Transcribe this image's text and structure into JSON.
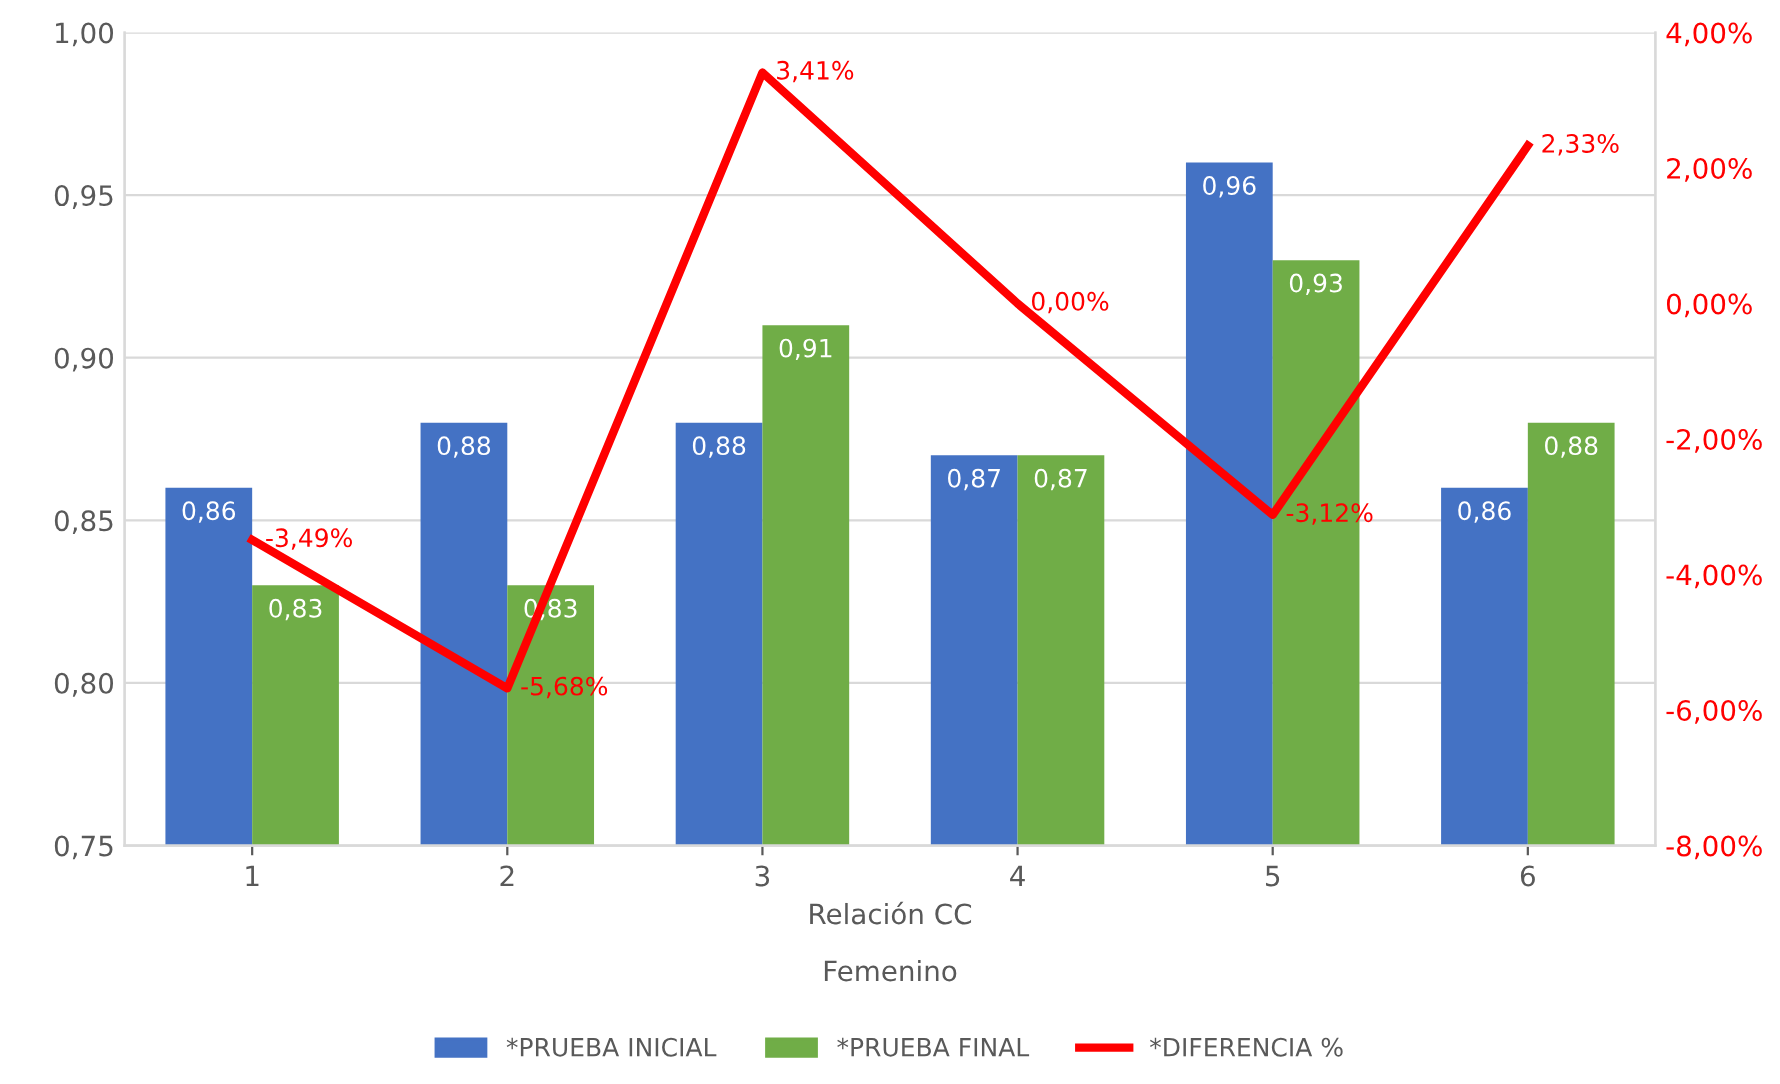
{
  "chart_data": {
    "type": "bar",
    "categories": [
      "1",
      "2",
      "3",
      "4",
      "5",
      "6"
    ],
    "xlabel": "Relación CC",
    "annotations": [
      "Femenino"
    ],
    "series": [
      {
        "name": "*PRUEBA INICIAL",
        "color": "#4472c4",
        "values": [
          0.86,
          0.88,
          0.88,
          0.87,
          0.96,
          0.86
        ],
        "value_labels": [
          "0,86",
          "0,88",
          "0,88",
          "0,87",
          "0,96",
          "0,86"
        ]
      },
      {
        "name": "*PRUEBA FINAL",
        "color": "#70ad47",
        "values": [
          0.83,
          0.83,
          0.91,
          0.87,
          0.93,
          0.88
        ],
        "value_labels": [
          "0,83",
          "0,83",
          "0,91",
          "0,87",
          "0,93",
          "0,88"
        ]
      },
      {
        "name": "*DIFERENCIA %",
        "type": "line",
        "axis": "y2",
        "color": "#ff0000",
        "values": [
          -3.49,
          -5.68,
          3.41,
          0.0,
          -3.12,
          2.33
        ],
        "value_labels": [
          "-3,49%",
          "-5,68%",
          "3,41%",
          "0,00%",
          "-3,12%",
          "2,33%"
        ]
      }
    ],
    "ylim": [
      0.75,
      1.0
    ],
    "yticks": [
      {
        "value": 0.75,
        "label": "0,75"
      },
      {
        "value": 0.8,
        "label": "0,80"
      },
      {
        "value": 0.85,
        "label": "0,85"
      },
      {
        "value": 0.9,
        "label": "0,90"
      },
      {
        "value": 0.95,
        "label": "0,95"
      },
      {
        "value": 1.0,
        "label": "1,00"
      }
    ],
    "y2lim": [
      -8,
      4
    ],
    "y2ticks": [
      {
        "value": -8,
        "label": "-8,00%"
      },
      {
        "value": -6,
        "label": "-6,00%"
      },
      {
        "value": -4,
        "label": "-4,00%"
      },
      {
        "value": -2,
        "label": "-2,00%"
      },
      {
        "value": 0,
        "label": "0,00%"
      },
      {
        "value": 2,
        "label": "2,00%"
      },
      {
        "value": 4,
        "label": "4,00%"
      }
    ],
    "grid": "y",
    "legend": "bottom",
    "marker": "none",
    "line_style": "solid"
  }
}
